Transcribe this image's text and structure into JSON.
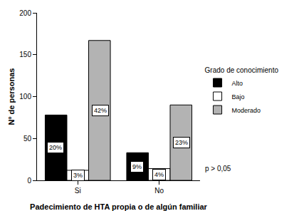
{
  "chart_data": {
    "type": "bar",
    "x_label": "Padecimiento de HTA propia o de algún familiar",
    "y_label": "Nº de personas",
    "categories": [
      "Si",
      "No"
    ],
    "legend_title": "Grado de conocimiento",
    "legend": "right",
    "series": [
      {
        "name": "Alto",
        "color": "#000000",
        "values": [
          78,
          33
        ],
        "labels": [
          "20%",
          "9%"
        ]
      },
      {
        "name": "Bajo",
        "color": "#ffffff",
        "values": [
          12,
          14
        ],
        "labels": [
          "3%",
          "4%"
        ]
      },
      {
        "name": "Moderado",
        "color": "#b3b3b3",
        "values": [
          167,
          90
        ],
        "labels": [
          "42%",
          "23%"
        ]
      }
    ],
    "ylim": [
      0,
      200
    ],
    "yticks": [
      0,
      50,
      100,
      150,
      200
    ],
    "grid": false,
    "annotations": [
      "p > 0,05"
    ]
  }
}
